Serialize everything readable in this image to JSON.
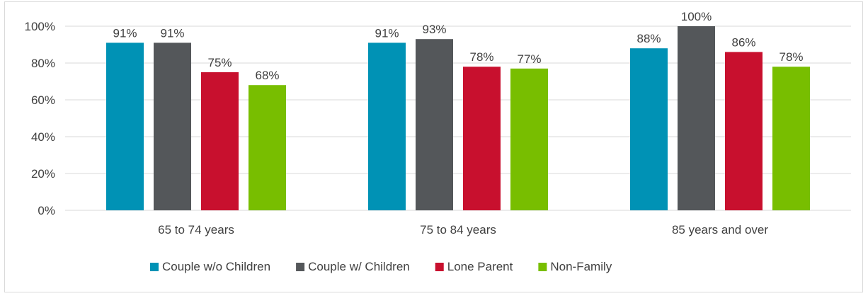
{
  "chart_data": {
    "type": "bar",
    "categories": [
      "65 to 74 years",
      "75 to 84 years",
      "85 years and over"
    ],
    "series": [
      {
        "name": "Couple w/o Children",
        "values": [
          91,
          91,
          88
        ],
        "labels": [
          "91%",
          "91%",
          "88%"
        ],
        "color": "#0092b5"
      },
      {
        "name": "Couple w/ Children",
        "values": [
          91,
          93,
          100
        ],
        "labels": [
          "91%",
          "93%",
          "100%"
        ],
        "color": "#54575a"
      },
      {
        "name": "Lone Parent",
        "values": [
          75,
          78,
          86
        ],
        "labels": [
          "75%",
          "78%",
          "86%"
        ],
        "color": "#c8102e"
      },
      {
        "name": "Non-Family",
        "values": [
          68,
          77,
          78
        ],
        "labels": [
          "68%",
          "77%",
          "78%"
        ],
        "color": "#78be00"
      }
    ],
    "ylim": [
      0,
      100
    ],
    "yticks": [
      0,
      20,
      40,
      60,
      80,
      100
    ],
    "ytick_labels": [
      "0%",
      "20%",
      "40%",
      "60%",
      "80%",
      "100%"
    ],
    "grid": true,
    "legend": "bottom",
    "gridline_color": "#d9d9d9",
    "text_color": "#404040"
  }
}
